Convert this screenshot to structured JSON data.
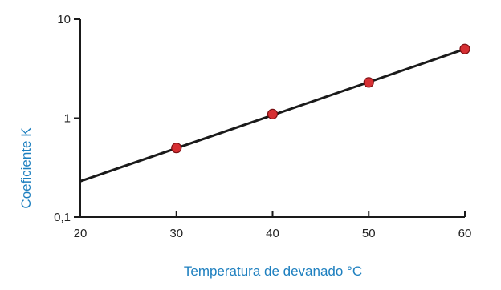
{
  "chart_data": {
    "type": "scatter",
    "title": "",
    "xlabel": "Temperatura de devanado °C",
    "ylabel": "Coeficiente  K",
    "x_ticks": [
      "20",
      "30",
      "40",
      "50",
      "60"
    ],
    "y_ticks": [
      "0,1",
      "1",
      "10"
    ],
    "xlim": [
      20,
      60
    ],
    "ylim": [
      0.1,
      10
    ],
    "y_scale": "log",
    "grid": false,
    "series": [
      {
        "x": [
          30,
          40,
          50,
          60
        ],
        "y": [
          0.5,
          1.1,
          2.3,
          5.0
        ],
        "marker_color": "#d62f33"
      }
    ],
    "trend_line": {
      "x": [
        20,
        60
      ],
      "y": [
        0.23,
        5.0
      ],
      "color": "#1a1a1a"
    },
    "colors": {
      "axis": "#1a1a1a",
      "label": "#1d7fbf",
      "marker": "#d62f33",
      "marker_edge": "#7a0f12"
    }
  }
}
